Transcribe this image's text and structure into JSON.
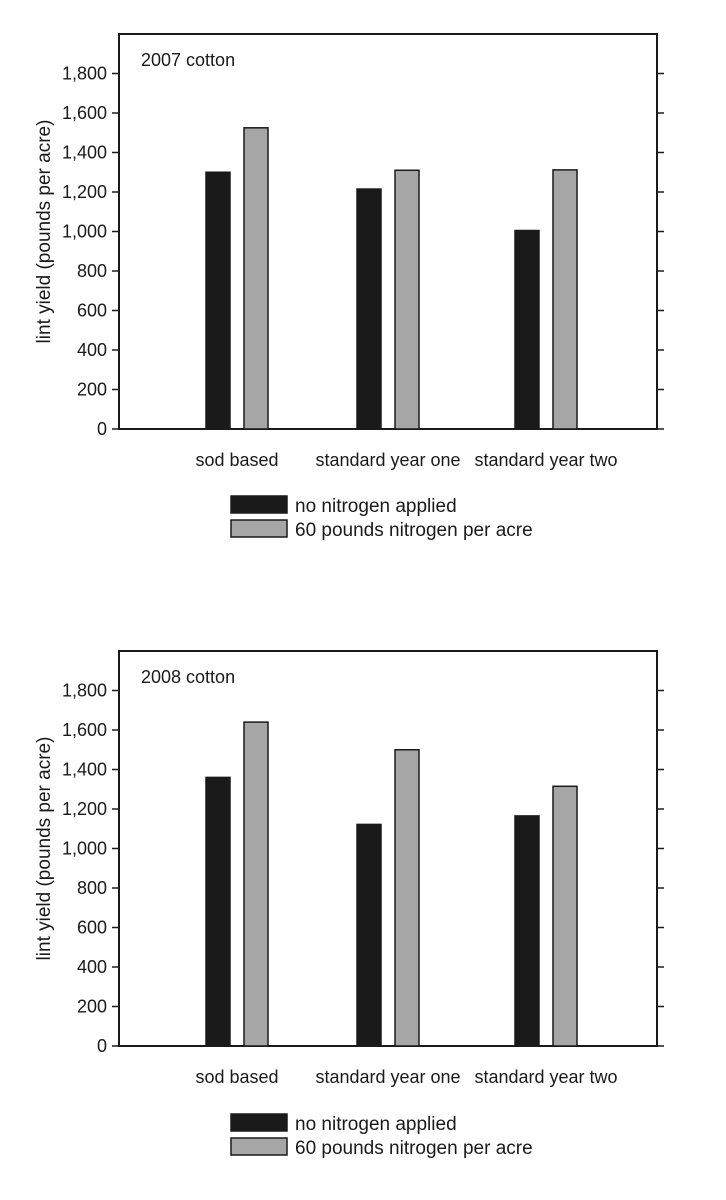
{
  "chart_data": [
    {
      "type": "bar",
      "title": "2007 cotton",
      "categories": [
        "sod based",
        "standard year one",
        "standard year two"
      ],
      "series": [
        {
          "name": "no nitrogen applied",
          "color": "#1a1a1a",
          "values": [
            1300,
            1215,
            1005
          ]
        },
        {
          "name": "60 pounds nitrogen per acre",
          "color": "#a6a6a6",
          "values": [
            1525,
            1310,
            1312
          ]
        }
      ],
      "xlabel": "",
      "ylabel": "lint yield (pounds per acre)",
      "ylim": [
        0,
        2000
      ],
      "yticks": [
        0,
        200,
        400,
        600,
        800,
        1000,
        1200,
        1400,
        1600,
        1800
      ],
      "ytick_labels": [
        "0",
        "200",
        "400",
        "600",
        "800",
        "1,000",
        "1,200",
        "1,400",
        "1,600",
        "1,800"
      ],
      "legend_position": "bottom"
    },
    {
      "type": "bar",
      "title": "2008 cotton",
      "categories": [
        "sod based",
        "standard year one",
        "standard year two"
      ],
      "series": [
        {
          "name": "no nitrogen applied",
          "color": "#1a1a1a",
          "values": [
            1360,
            1122,
            1165
          ]
        },
        {
          "name": "60 pounds nitrogen per acre",
          "color": "#a6a6a6",
          "values": [
            1640,
            1500,
            1315
          ]
        }
      ],
      "xlabel": "",
      "ylabel": "lint yield (pounds per acre)",
      "ylim": [
        0,
        2000
      ],
      "yticks": [
        0,
        200,
        400,
        600,
        800,
        1000,
        1200,
        1400,
        1600,
        1800
      ],
      "ytick_labels": [
        "0",
        "200",
        "400",
        "600",
        "800",
        "1,000",
        "1,200",
        "1,400",
        "1,600",
        "1,800"
      ],
      "legend_position": "bottom"
    }
  ]
}
